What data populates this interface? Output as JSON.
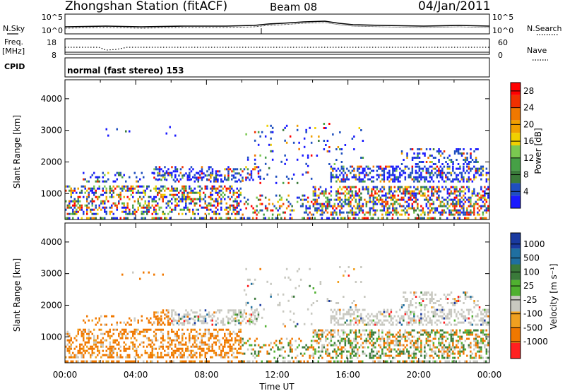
{
  "header": {
    "station": "Zhongshan Station (fitACF)",
    "beam": "Beam 08",
    "date": "04/Jan/2011"
  },
  "top_panels": {
    "noise": {
      "left_label": "N.Sky",
      "right_label": "N.Search",
      "left_ticks": [
        "10^5",
        "10^0"
      ],
      "right_ticks": [
        "10^5",
        "10^0"
      ]
    },
    "freq": {
      "left_label_1": "Freq.",
      "left_label_2": "[MHz]",
      "left_ticks": [
        "18",
        "8"
      ],
      "right_ticks": [
        "60",
        "0"
      ],
      "right_label": "Nave"
    },
    "cpid": {
      "label": "CPID",
      "text": "normal (fast stereo) 153"
    }
  },
  "chart_data": [
    {
      "type": "heatmap",
      "title": "",
      "ylabel": "Slant Range [km]",
      "ylim": [
        180,
        4600
      ],
      "y_ticks": [
        "1000",
        "2000",
        "3000",
        "4000"
      ],
      "colorbar": {
        "label": "Power [dB]",
        "ticks": [
          "4",
          "8",
          "12",
          "16",
          "20",
          "24",
          "28"
        ],
        "colors": [
          "#1a1aff",
          "#1f4fbf",
          "#3a7a3a",
          "#46a046",
          "#7ac850",
          "#f0d000",
          "#f0a000",
          "#f07800",
          "#f03000",
          "#ff0000"
        ]
      }
    },
    {
      "type": "heatmap",
      "title": "",
      "ylabel": "Slant Range [km]",
      "xlabel": "Time UT",
      "ylim": [
        180,
        4600
      ],
      "y_ticks": [
        "1000",
        "2000",
        "3000",
        "4000"
      ],
      "x_ticks": [
        "00:00",
        "04:00",
        "08:00",
        "12:00",
        "16:00",
        "20:00",
        "00:00"
      ],
      "colorbar": {
        "label": "Velocity  [m s⁻¹]",
        "ticks": [
          "1000",
          "500",
          "100",
          "25",
          "-25",
          "-100",
          "-500",
          "-1000"
        ],
        "colors": [
          "#1a3aa0",
          "#1f6fa0",
          "#3a7a3a",
          "#50b030",
          "#c8c8c0",
          "#f0a020",
          "#f07800",
          "#ff2020"
        ]
      }
    }
  ]
}
